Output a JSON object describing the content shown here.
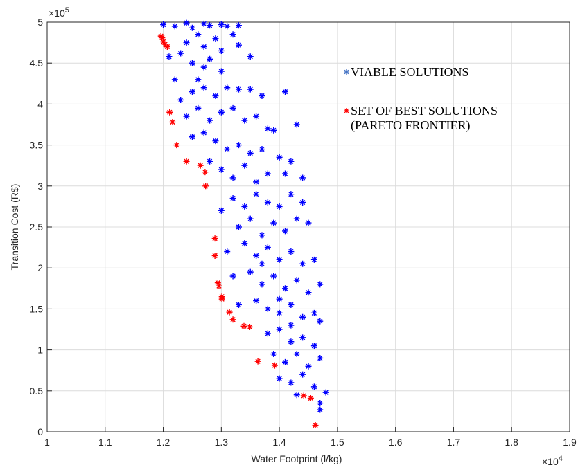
{
  "chart_data": {
    "type": "scatter",
    "x_label": "Water Footprint (l/kg)",
    "y_label": "Transition Cost (R$)",
    "x_multiplier": {
      "base": "×10",
      "exponent": "4"
    },
    "y_multiplier": {
      "base": "×10",
      "exponent": "5"
    },
    "xlim": [
      1,
      1.9
    ],
    "ylim": [
      0,
      5
    ],
    "xticks": [
      1,
      1.1,
      1.2,
      1.3,
      1.4,
      1.5,
      1.6,
      1.7,
      1.8,
      1.9
    ],
    "yticks": [
      0,
      0.5,
      1,
      1.5,
      2,
      2.5,
      3,
      3.5,
      4,
      4.5,
      5
    ],
    "grid": true,
    "series": [
      {
        "name": "VIABLE SOLUTIONS",
        "color": "#0000ff",
        "legend_color": "#4472c4",
        "x": [
          1.2,
          1.22,
          1.24,
          1.25,
          1.27,
          1.28,
          1.3,
          1.31,
          1.33,
          1.21,
          1.23,
          1.24,
          1.26,
          1.27,
          1.29,
          1.3,
          1.32,
          1.33,
          1.35,
          1.25,
          1.27,
          1.28,
          1.3,
          1.26,
          1.22,
          1.23,
          1.25,
          1.27,
          1.29,
          1.31,
          1.33,
          1.35,
          1.37,
          1.41,
          1.24,
          1.26,
          1.28,
          1.3,
          1.32,
          1.34,
          1.36,
          1.38,
          1.39,
          1.43,
          1.25,
          1.27,
          1.29,
          1.31,
          1.33,
          1.35,
          1.37,
          1.4,
          1.42,
          1.28,
          1.3,
          1.32,
          1.34,
          1.36,
          1.38,
          1.41,
          1.44,
          1.3,
          1.32,
          1.34,
          1.36,
          1.38,
          1.4,
          1.42,
          1.44,
          1.33,
          1.35,
          1.37,
          1.39,
          1.41,
          1.43,
          1.45,
          1.31,
          1.34,
          1.36,
          1.38,
          1.4,
          1.42,
          1.44,
          1.46,
          1.32,
          1.35,
          1.37,
          1.39,
          1.41,
          1.43,
          1.45,
          1.47,
          1.33,
          1.36,
          1.38,
          1.4,
          1.42,
          1.44,
          1.46,
          1.47,
          1.38,
          1.4,
          1.42,
          1.44,
          1.46,
          1.39,
          1.41,
          1.43,
          1.45,
          1.47,
          1.4,
          1.42,
          1.44,
          1.46,
          1.48,
          1.43,
          1.47,
          1.47,
          1.37,
          1.4,
          1.42
        ],
        "values": [
          4.97,
          4.95,
          4.99,
          4.93,
          4.98,
          4.96,
          4.97,
          4.95,
          4.96,
          4.58,
          4.62,
          4.75,
          4.85,
          4.7,
          4.8,
          4.65,
          4.85,
          4.72,
          4.58,
          4.5,
          4.45,
          4.55,
          4.4,
          4.3,
          4.3,
          4.05,
          4.15,
          4.2,
          4.1,
          4.2,
          4.18,
          4.18,
          4.1,
          4.15,
          3.85,
          3.95,
          3.8,
          3.9,
          3.95,
          3.8,
          3.85,
          3.7,
          3.68,
          3.75,
          3.6,
          3.65,
          3.55,
          3.45,
          3.5,
          3.4,
          3.45,
          3.35,
          3.3,
          3.3,
          3.2,
          3.1,
          3.25,
          3.05,
          3.15,
          3.15,
          3.1,
          2.7,
          2.85,
          2.75,
          2.9,
          2.8,
          2.75,
          2.9,
          2.8,
          2.5,
          2.6,
          2.4,
          2.55,
          2.45,
          2.6,
          2.55,
          2.2,
          2.3,
          2.15,
          2.25,
          2.1,
          2.2,
          2.05,
          2.1,
          1.9,
          1.95,
          1.8,
          1.9,
          1.75,
          1.85,
          1.7,
          1.8,
          1.55,
          1.6,
          1.5,
          1.45,
          1.55,
          1.4,
          1.45,
          1.35,
          1.2,
          1.25,
          1.1,
          1.15,
          1.05,
          0.95,
          0.85,
          0.95,
          0.8,
          0.9,
          0.65,
          0.6,
          0.7,
          0.55,
          0.48,
          0.45,
          0.35,
          0.27,
          2.05,
          1.62,
          1.3
        ]
      },
      {
        "name": "SET OF BEST SOLUTIONS (PARETO FRONTIER)",
        "color": "#ff0000",
        "legend_color": "#ff0000",
        "x": [
          1.196,
          1.198,
          1.2,
          1.203,
          1.207,
          1.211,
          1.216,
          1.223,
          1.24,
          1.264,
          1.272,
          1.273,
          1.289,
          1.289,
          1.294,
          1.296,
          1.301,
          1.301,
          1.314,
          1.32,
          1.339,
          1.349,
          1.363,
          1.392,
          1.442,
          1.454,
          1.462
        ],
        "values": [
          4.83,
          4.81,
          4.76,
          4.73,
          4.7,
          3.9,
          3.78,
          3.5,
          3.3,
          3.25,
          3.17,
          3.0,
          2.36,
          2.15,
          1.82,
          1.78,
          1.65,
          1.62,
          1.46,
          1.37,
          1.29,
          1.28,
          0.86,
          0.81,
          0.44,
          0.41,
          0.08
        ]
      }
    ]
  }
}
